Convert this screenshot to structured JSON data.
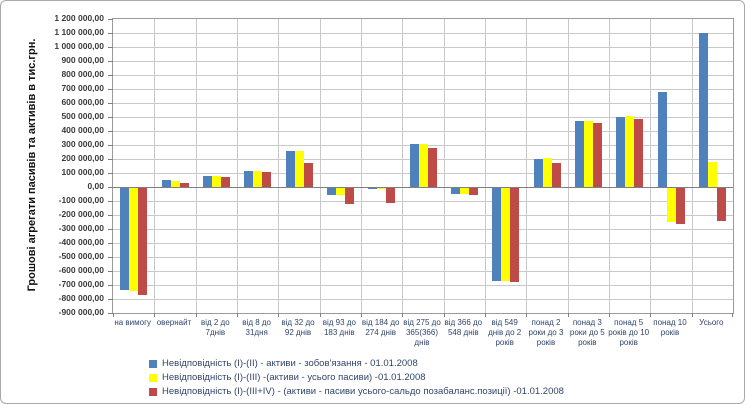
{
  "chart_data": {
    "type": "bar",
    "title": "",
    "ylabel": "Грошові агрегати пасивів та активів в тис.грн.",
    "xlabel": "",
    "ylim": [
      -900000,
      1200000
    ],
    "ytick_step": 100000,
    "grid": true,
    "legend_position": "bottom",
    "y_ticks": [
      "1 200 000,00",
      "1 100 000,00",
      "1 000 000,00",
      "900 000,00",
      "800 000,00",
      "700 000,00",
      "600 000,00",
      "500 000,00",
      "400 000,00",
      "300 000,00",
      "200 000,00",
      "100 000,00",
      "0,00",
      "-100 000,00",
      "-200 000,00",
      "-300 000,00",
      "-400 000,00",
      "-500 000,00",
      "-600 000,00",
      "-700 000,00",
      "-800 000,00",
      "-900 000,00"
    ],
    "categories": [
      "на вимогу",
      "овернайт",
      "від 2 до 7днів",
      "від 8 до 31дня",
      "від 32 до 92 днів",
      "від 93 до 183 днів",
      "від 184 до 274 днів",
      "від 275 до 365(366) днів",
      "від 366 до 548 днів",
      "від 549 днів до 2 років",
      "понад 2 роки до 3 років",
      "понад 3 роки до 5 років",
      "понад 5 років до 10 років",
      "понад 10 років",
      "Усього"
    ],
    "series": [
      {
        "name": "Невідповідність (І)-(ІІ) - активи - зобов'язання - 01.01.2008",
        "color": "#4f81bd",
        "values": [
          -730000,
          50000,
          80000,
          115000,
          260000,
          -52000,
          -10000,
          310000,
          -45000,
          -665000,
          200000,
          470000,
          500000,
          680000,
          1100000
        ]
      },
      {
        "name": "Невідповідність (І)-(ІІІ) -(активи - усього пасиви) -01.01.2008",
        "color": "#ffff00",
        "values": [
          -735000,
          45000,
          80000,
          112000,
          260000,
          -52000,
          -10000,
          310000,
          -45000,
          -665000,
          205000,
          470000,
          510000,
          -240000,
          178000
        ]
      },
      {
        "name": "Невідповідність (І)-(ІІІ+ІV) - (активи - пасиви усього-сальдо позабаланс.позиції) -01.01.2008",
        "color": "#be4b48",
        "values": [
          -765000,
          28000,
          75000,
          105000,
          175000,
          -112000,
          -105000,
          278000,
          -50000,
          -672000,
          175000,
          455000,
          485000,
          -260000,
          -235000
        ]
      }
    ],
    "colors": {
      "gridline": "#c9c9c9",
      "axis": "#7f7f7f",
      "plot_border": "#9b9b9b",
      "category_text": "#31456b",
      "tick_text": "#3a3a3a"
    }
  }
}
